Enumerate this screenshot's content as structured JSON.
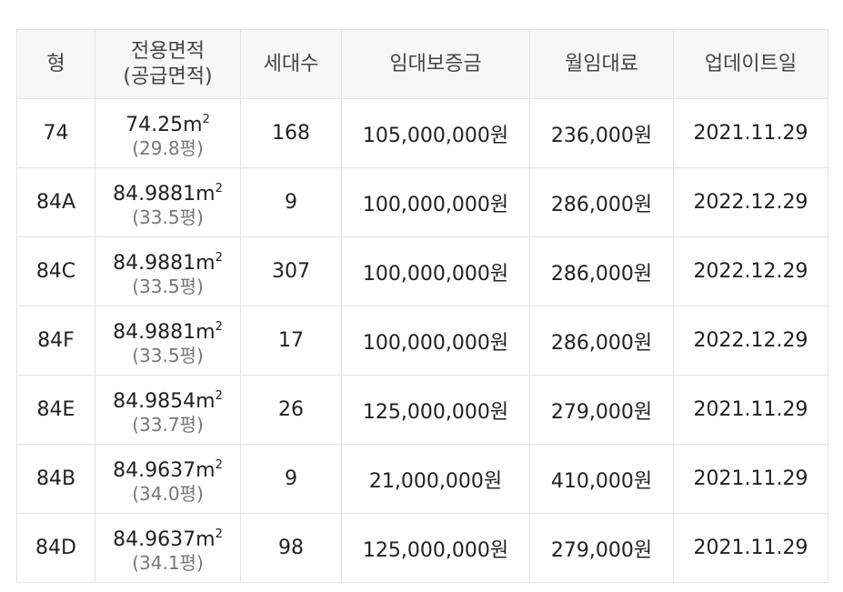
{
  "headers": {
    "type": "형",
    "area_line1": "전용면적",
    "area_line2": "(공급면적)",
    "households": "세대수",
    "deposit": "임대보증금",
    "monthly": "월임대료",
    "updated": "업데이트일"
  },
  "units": {
    "sqm": "m",
    "sq": "2"
  },
  "rows": [
    {
      "type": "74",
      "area": "74.25",
      "supply": "(29.8평)",
      "households": "168",
      "deposit": "105,000,000원",
      "monthly": "236,000원",
      "updated": "2021.11.29"
    },
    {
      "type": "84A",
      "area": "84.9881",
      "supply": "(33.5평)",
      "households": "9",
      "deposit": "100,000,000원",
      "monthly": "286,000원",
      "updated": "2022.12.29"
    },
    {
      "type": "84C",
      "area": "84.9881",
      "supply": "(33.5평)",
      "households": "307",
      "deposit": "100,000,000원",
      "monthly": "286,000원",
      "updated": "2022.12.29"
    },
    {
      "type": "84F",
      "area": "84.9881",
      "supply": "(33.5평)",
      "households": "17",
      "deposit": "100,000,000원",
      "monthly": "286,000원",
      "updated": "2022.12.29"
    },
    {
      "type": "84E",
      "area": "84.9854",
      "supply": "(33.7평)",
      "households": "26",
      "deposit": "125,000,000원",
      "monthly": "279,000원",
      "updated": "2021.11.29"
    },
    {
      "type": "84B",
      "area": "84.9637",
      "supply": "(34.0평)",
      "households": "9",
      "deposit": "21,000,000원",
      "monthly": "410,000원",
      "updated": "2021.11.29"
    },
    {
      "type": "84D",
      "area": "84.9637",
      "supply": "(34.1평)",
      "households": "98",
      "deposit": "125,000,000원",
      "monthly": "279,000원",
      "updated": "2021.11.29"
    }
  ]
}
